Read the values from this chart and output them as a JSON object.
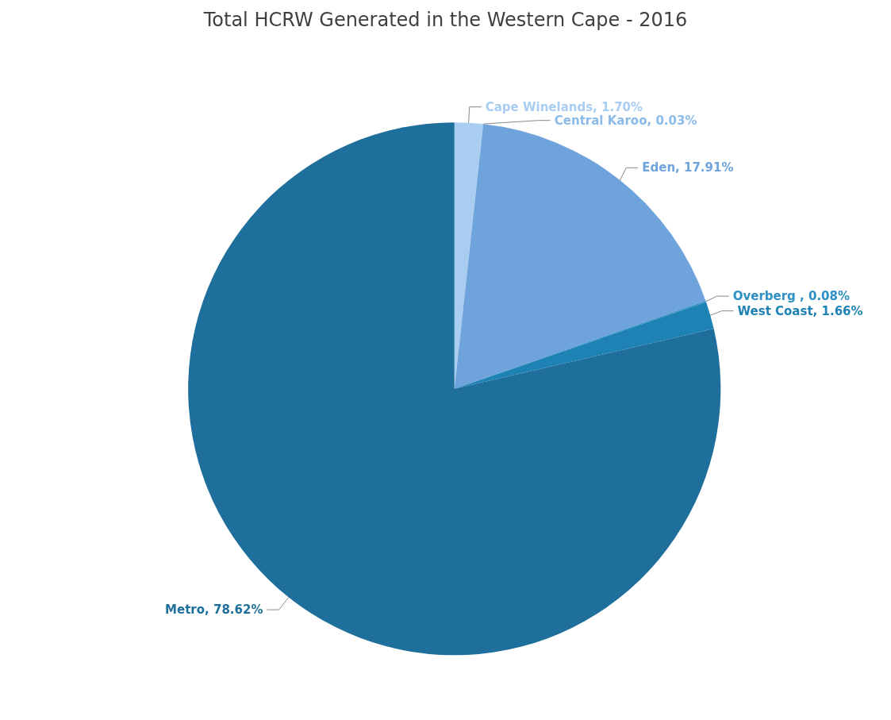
{
  "chart_data": {
    "type": "pie",
    "title": "Total HCRW Generated in the Western Cape - 2016",
    "categories": [
      "Cape Winelands",
      "Central Karoo",
      "Eden",
      "Overberg ",
      "West Coast",
      "Metro"
    ],
    "values": [
      1.7,
      0.03,
      17.91,
      0.08,
      1.66,
      78.62
    ],
    "colors": [
      "#a9cdf0",
      "#8bbbe8",
      "#6fa3dc",
      "#2e8fc4",
      "#1f82b5",
      "#1f6f9c"
    ],
    "value_labels": [
      "1.70%",
      "0.03%",
      "17.91%",
      "0.08%",
      "1.66%",
      "78.62%"
    ]
  }
}
